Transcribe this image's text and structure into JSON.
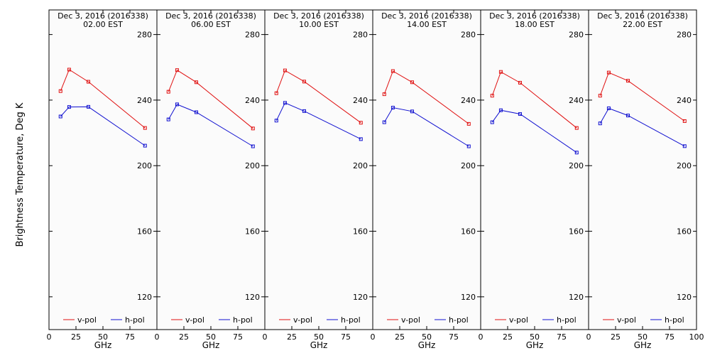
{
  "figure": {
    "ylabel": "Brightness Temperature, Deg K",
    "xlabel": "GHz",
    "date_line": "Dec  3, 2016 (2016338)",
    "ylim": [
      100,
      295
    ],
    "xlim": [
      0,
      100
    ],
    "y_ticks": [
      120,
      160,
      200,
      240,
      280
    ],
    "x_ticks": [
      0,
      25,
      50,
      75,
      100
    ],
    "colors": {
      "v_pol": "#e01010",
      "h_pol": "#1010d0",
      "panel_bg": "#fbfbfb"
    },
    "legend": {
      "v_pol": "v-pol",
      "h_pol": "h-pol"
    }
  },
  "chart_data": [
    {
      "type": "line",
      "title": "Dec  3, 2016 (2016338)",
      "subtitle": "02.00 EST",
      "x": [
        10.7,
        18.7,
        36.5,
        89.0
      ],
      "series": [
        {
          "name": "v-pol",
          "values": [
            245.5,
            258.6,
            251.2,
            223.0
          ]
        },
        {
          "name": "h-pol",
          "values": [
            230.0,
            235.8,
            235.9,
            212.2
          ]
        }
      ]
    },
    {
      "type": "line",
      "title": "Dec  3, 2016 (2016338)",
      "subtitle": "06.00 EST",
      "x": [
        10.7,
        18.7,
        36.5,
        89.0
      ],
      "series": [
        {
          "name": "v-pol",
          "values": [
            245.1,
            258.3,
            250.9,
            222.7
          ]
        },
        {
          "name": "h-pol",
          "values": [
            228.2,
            237.4,
            232.6,
            211.8
          ]
        }
      ]
    },
    {
      "type": "line",
      "title": "Dec  3, 2016 (2016338)",
      "subtitle": "10.00 EST",
      "x": [
        10.7,
        18.7,
        36.5,
        89.0
      ],
      "series": [
        {
          "name": "v-pol",
          "values": [
            244.2,
            258.1,
            251.3,
            226.2
          ]
        },
        {
          "name": "h-pol",
          "values": [
            227.5,
            238.3,
            233.3,
            216.2
          ]
        }
      ]
    },
    {
      "type": "line",
      "title": "Dec  3, 2016 (2016338)",
      "subtitle": "14.00 EST",
      "x": [
        10.7,
        18.7,
        36.5,
        89.0
      ],
      "series": [
        {
          "name": "v-pol",
          "values": [
            243.6,
            257.7,
            250.9,
            225.5
          ]
        },
        {
          "name": "h-pol",
          "values": [
            226.5,
            235.4,
            233.1,
            211.8
          ]
        }
      ]
    },
    {
      "type": "line",
      "title": "Dec  3, 2016 (2016338)",
      "subtitle": "18.00 EST",
      "x": [
        10.7,
        18.7,
        36.5,
        89.0
      ],
      "series": [
        {
          "name": "v-pol",
          "values": [
            242.7,
            257.2,
            250.6,
            223.0
          ]
        },
        {
          "name": "h-pol",
          "values": [
            226.5,
            233.8,
            231.5,
            208.0
          ]
        }
      ]
    },
    {
      "type": "line",
      "title": "Dec  3, 2016 (2016338)",
      "subtitle": "22.00 EST",
      "x": [
        10.7,
        18.7,
        36.5,
        89.0
      ],
      "series": [
        {
          "name": "v-pol",
          "values": [
            242.7,
            256.8,
            251.8,
            227.2
          ]
        },
        {
          "name": "h-pol",
          "values": [
            225.8,
            235.0,
            230.6,
            211.9
          ]
        }
      ]
    }
  ]
}
